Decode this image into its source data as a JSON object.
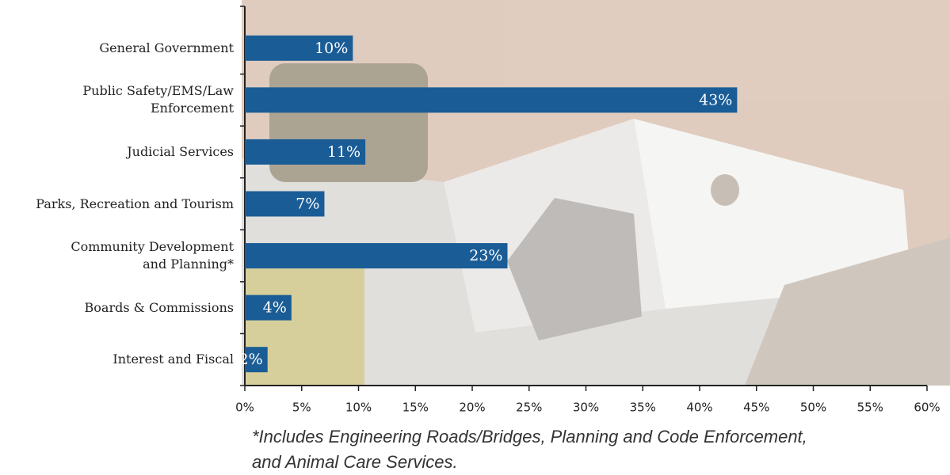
{
  "chart_data": {
    "type": "barh",
    "categories": [
      "General Government",
      "Public Safety/EMS/Law\nEnforcement",
      "Judicial Services",
      "Parks, Recreation and Tourism",
      "Community Development\nand Planning*",
      "Boards & Commissions",
      "Interest and Fiscal"
    ],
    "values": [
      9.5,
      43.3,
      10.6,
      7.0,
      23.1,
      4.1,
      2.0
    ],
    "value_labels": [
      "10%",
      "43%",
      "11%",
      "7%",
      "23%",
      "4%",
      "2%"
    ],
    "color": "#1a5c96",
    "xlim": [
      0,
      60
    ],
    "xticks": [
      {
        "value": 0,
        "label": "0%"
      },
      {
        "value": 5,
        "label": "5%"
      },
      {
        "value": 10,
        "label": "10%"
      },
      {
        "value": 15,
        "label": "15%"
      },
      {
        "value": 20,
        "label": "20%"
      },
      {
        "value": 25,
        "label": "25%"
      },
      {
        "value": 30,
        "label": "30%"
      },
      {
        "value": 35,
        "label": "35%"
      },
      {
        "value": 40,
        "label": "40%"
      },
      {
        "value": 45,
        "label": "45%"
      },
      {
        "value": 50,
        "label": "50%"
      },
      {
        "value": 55,
        "label": "55%"
      },
      {
        "value": 60,
        "label": "60%"
      }
    ],
    "footnote": "*Includes Engineering Roads/Bridges, Planning and Code Enforcement,\nand Animal Care Services."
  }
}
